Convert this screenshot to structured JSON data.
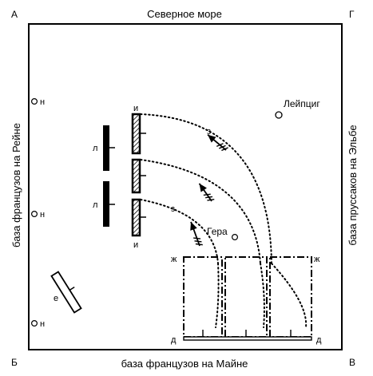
{
  "corners": {
    "top_left": "А",
    "top_right": "Г",
    "bottom_left": "Б",
    "bottom_right": "В"
  },
  "edges": {
    "top": "Северное море",
    "bottom": "база французов на Майне",
    "left": "база французов на Рейне",
    "right": "база пруссаков на Эльбе"
  },
  "places": {
    "leipzig": "Лейпциг",
    "gera": "Гера"
  },
  "marks": {
    "n": "н",
    "l": "л",
    "i": "и",
    "z": "з",
    "e": "е",
    "zh": "ж",
    "d": "д"
  }
}
